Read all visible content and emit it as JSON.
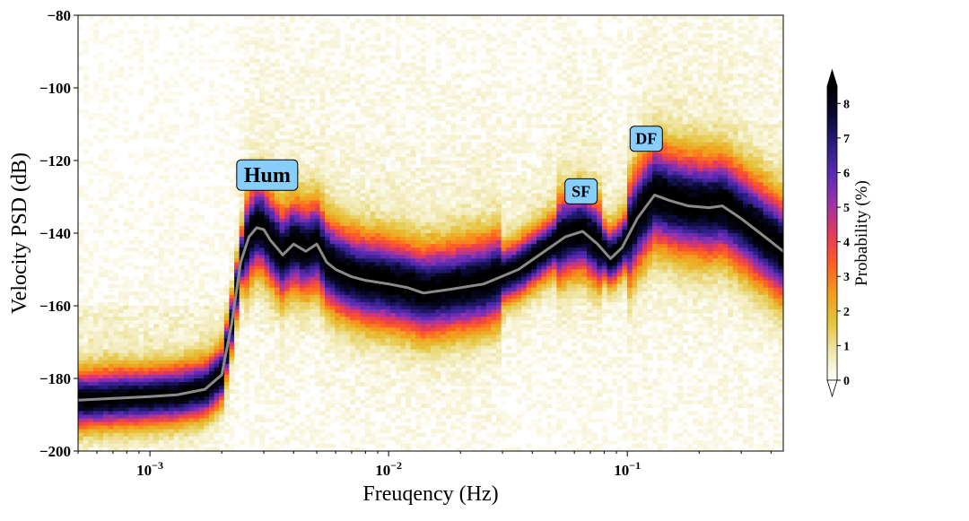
{
  "chart_data": {
    "type": "heatmap",
    "title": "",
    "xlabel": "Freuqency (Hz)",
    "ylabel": "Velocity PSD (dB)",
    "xscale": "log",
    "xlim": [
      0.0005,
      0.45
    ],
    "ylim": [
      -200,
      -80
    ],
    "x_ticks": [
      {
        "value": 0.001,
        "base": "10",
        "exp": "−3"
      },
      {
        "value": 0.01,
        "base": "10",
        "exp": "−2"
      },
      {
        "value": 0.1,
        "base": "10",
        "exp": "−1"
      }
    ],
    "y_ticks": [
      {
        "value": -80,
        "label": "−80"
      },
      {
        "value": -100,
        "label": "−100"
      },
      {
        "value": -120,
        "label": "−120"
      },
      {
        "value": -140,
        "label": "−140"
      },
      {
        "value": -160,
        "label": "−160"
      },
      {
        "value": -180,
        "label": "−180"
      },
      {
        "value": -200,
        "label": "−200"
      }
    ],
    "mode_curve": {
      "color": "#8a8a8a",
      "x": [
        0.0005,
        0.0007,
        0.001,
        0.0013,
        0.0017,
        0.002,
        0.0022,
        0.0024,
        0.0026,
        0.0028,
        0.003,
        0.0032,
        0.0034,
        0.0036,
        0.004,
        0.0045,
        0.005,
        0.0055,
        0.006,
        0.007,
        0.008,
        0.01,
        0.012,
        0.014,
        0.018,
        0.025,
        0.035,
        0.045,
        0.055,
        0.065,
        0.075,
        0.085,
        0.095,
        0.11,
        0.13,
        0.15,
        0.18,
        0.22,
        0.25,
        0.3,
        0.36,
        0.45
      ],
      "y": [
        -186,
        -185.5,
        -185,
        -184.5,
        -183,
        -179,
        -165,
        -148,
        -141,
        -138.5,
        -139,
        -142,
        -144,
        -146,
        -143,
        -145,
        -143,
        -148,
        -150,
        -152,
        -153,
        -154,
        -155,
        -156.5,
        -155.5,
        -154,
        -150,
        -145,
        -141,
        -139.5,
        -143,
        -147,
        -144,
        -136,
        -129.5,
        -131,
        -132.5,
        -133,
        -132.5,
        -136,
        -140,
        -145
      ]
    },
    "density_bands": [
      {
        "x": [
          0.0005,
          0.002
        ],
        "center": -186,
        "width": 9
      },
      {
        "x": [
          0.0025,
          0.01
        ],
        "center": -148,
        "width": 14
      },
      {
        "x": [
          0.01,
          0.03
        ],
        "center": -156,
        "width": 14
      },
      {
        "x": [
          0.05,
          0.08
        ],
        "center": -141,
        "width": 13
      },
      {
        "x": [
          0.1,
          0.45
        ],
        "center": -133,
        "width": 16
      }
    ],
    "annotations": [
      {
        "text": "Hum",
        "x": 0.0031,
        "y": -124,
        "size": "large"
      },
      {
        "text": "SF",
        "x": 0.064,
        "y": -128.5,
        "size": "small"
      },
      {
        "text": "DF",
        "x": 0.12,
        "y": -114,
        "size": "small"
      }
    ],
    "annotation_style": {
      "fill": "#87cefa",
      "stroke": "#000000"
    },
    "colorbar": {
      "label": "Probability (%)",
      "range": [
        0,
        8.5
      ],
      "ticks": [
        0,
        1,
        2,
        3,
        4,
        5,
        6,
        7,
        8
      ],
      "colormap": "CMRmap_r",
      "colors": [
        "#ffffff",
        "#efe6a8",
        "#e6c23a",
        "#f29a1a",
        "#ff5a26",
        "#e23a5c",
        "#9b33a8",
        "#5a2ab4",
        "#2a1e80",
        "#0a0a30",
        "#000000"
      ],
      "extend": "both"
    },
    "grid": false,
    "legend": "none"
  }
}
